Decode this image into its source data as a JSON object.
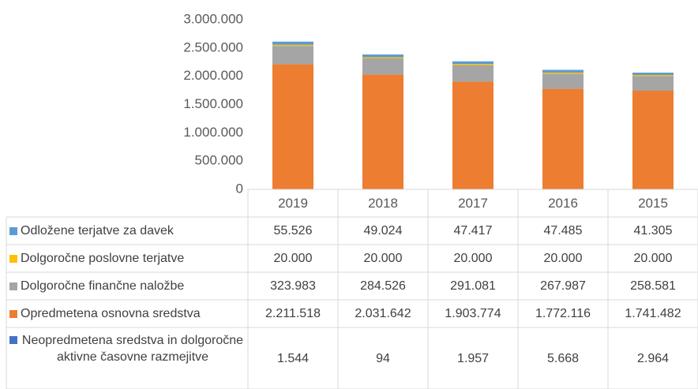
{
  "chart_data": {
    "type": "stacked_bar",
    "categories": [
      "2019",
      "2018",
      "2017",
      "2016",
      "2015"
    ],
    "series": [
      {
        "name": "Odložene terjatve za davek",
        "color": "#5b9bd5",
        "values": [
          55526,
          49024,
          47417,
          47485,
          41305
        ],
        "value_labels": [
          "55.526",
          "49.024",
          "47.417",
          "47.485",
          "41.305"
        ]
      },
      {
        "name": "Dolgoročne poslovne terjatve",
        "color": "#ffc000",
        "values": [
          20000,
          20000,
          20000,
          20000,
          20000
        ],
        "value_labels": [
          "20.000",
          "20.000",
          "20.000",
          "20.000",
          "20.000"
        ]
      },
      {
        "name": "Dolgoročne finančne naložbe",
        "color": "#a5a5a5",
        "values": [
          323983,
          284526,
          291081,
          267987,
          258581
        ],
        "value_labels": [
          "323.983",
          "284.526",
          "291.081",
          "267.987",
          "258.581"
        ]
      },
      {
        "name": "Opredmetena osnovna sredstva",
        "color": "#ed7d31",
        "values": [
          2211518,
          2031642,
          1903774,
          1772116,
          1741482
        ],
        "value_labels": [
          "2.211.518",
          "2.031.642",
          "1.903.774",
          "1.772.116",
          "1.741.482"
        ]
      },
      {
        "name": "Neopredmetena sredstva in dolgoročne aktivne časovne razmejitve",
        "color": "#4472c4",
        "values": [
          1544,
          94,
          1957,
          5668,
          2964
        ],
        "value_labels": [
          "1.544",
          "94",
          "1.957",
          "5.668",
          "2.964"
        ]
      }
    ],
    "ylim": [
      0,
      3000000
    ],
    "yticks": [
      0,
      {
        "value": 500000,
        "label": "500.000"
      },
      {
        "value": 1000000,
        "label": "1.000.000"
      },
      {
        "value": 1500000,
        "label": "1.500.000"
      },
      {
        "value": 2000000,
        "label": "2.000.000"
      },
      {
        "value": 2500000,
        "label": "2.500.000"
      },
      {
        "value": 3000000,
        "label": "3.000.000"
      }
    ]
  }
}
